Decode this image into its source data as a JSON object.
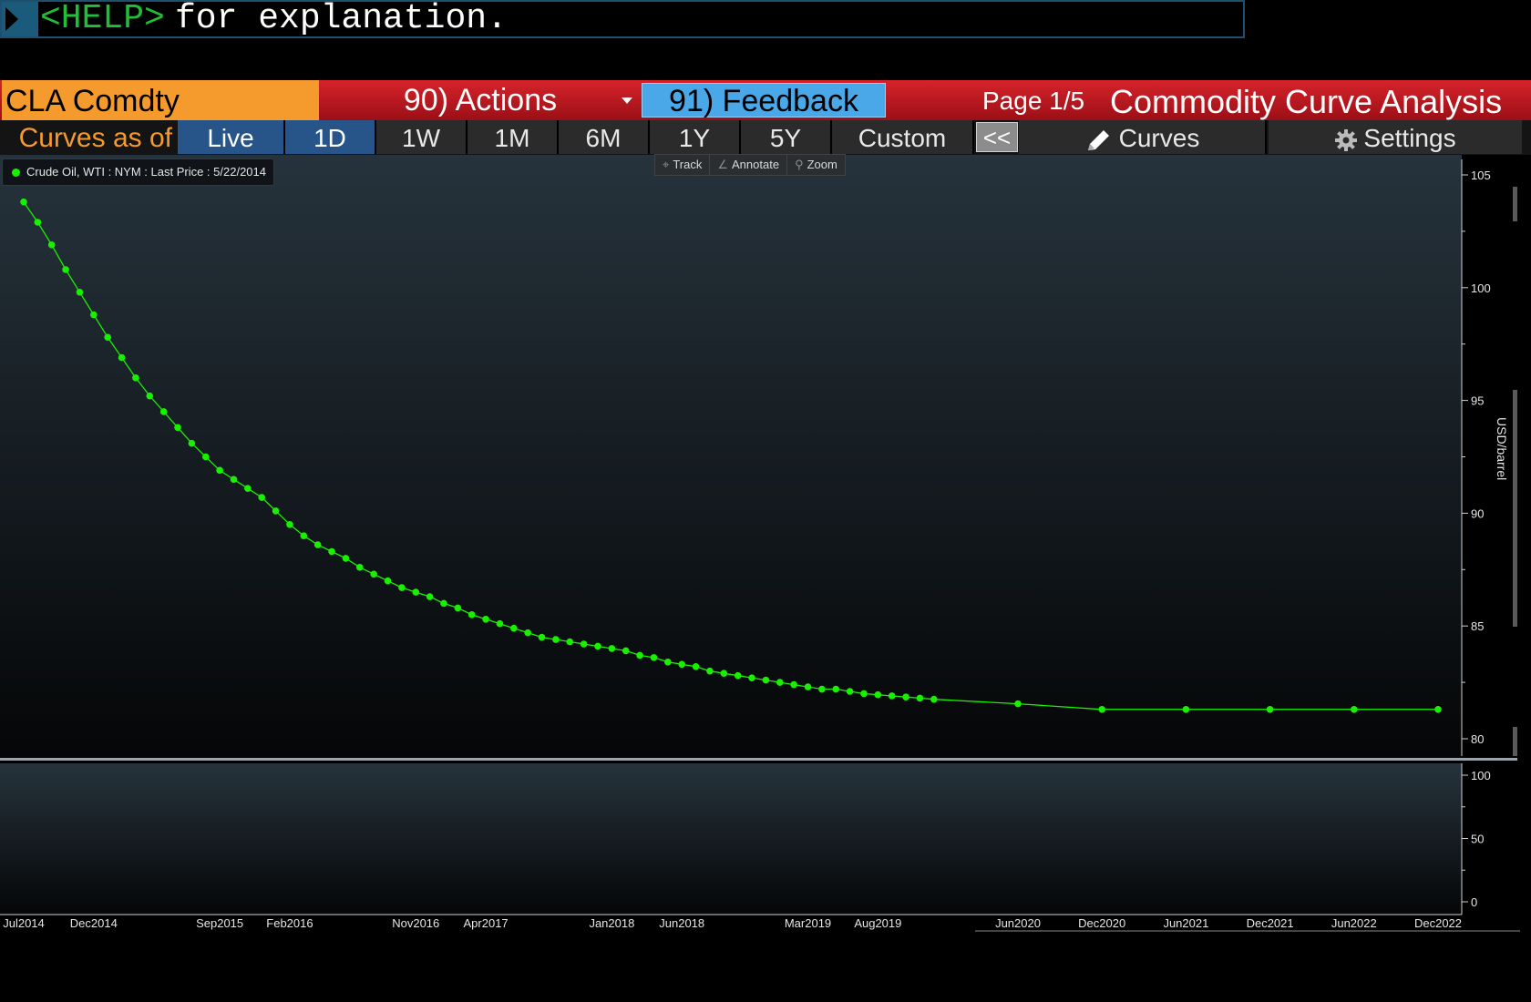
{
  "command_line": {
    "help_tag": "<HELP>",
    "text": " for explanation."
  },
  "titlebar": {
    "ticker": "CLA Comdty",
    "actions_label": "90) Actions",
    "feedback_label": "91) Feedback",
    "page": "Page 1/5",
    "title": "Commodity Curve Analysis"
  },
  "toolbar": {
    "as_of_label": "Curves as of",
    "buttons": [
      "Live",
      "1D",
      "1W",
      "1M",
      "6M",
      "1Y",
      "5Y",
      "Custom"
    ],
    "selected": [
      "Live",
      "1D"
    ],
    "collapse_label": "<<",
    "curves_label": "Curves",
    "settings_label": "Settings"
  },
  "chart_tools": {
    "track": "Track",
    "annotate": "Annotate",
    "zoom": "Zoom"
  },
  "colors": {
    "series": "#19f000",
    "ticker_bg": "#f59a2c",
    "title_red": "#c8141c",
    "selected_blue": "#27558a",
    "feedback_blue": "#4aa7e8"
  },
  "chart_data": {
    "type": "line",
    "legend": "Crude Oil, WTI : NYM : Last Price : 5/22/2014",
    "ylabel": "USD/barrel",
    "ylim": [
      80,
      105
    ],
    "yticks": [
      80,
      85,
      90,
      95,
      100,
      105
    ],
    "x_tick_labels": [
      "Jul2014",
      "Dec2014",
      "Sep2015",
      "Feb2016",
      "Nov2016",
      "Apr2017",
      "Jan2018",
      "Jun2018",
      "Mar2019",
      "Aug2019",
      "Jun2020",
      "Dec2020",
      "Jun2021",
      "Dec2021",
      "Jun2022",
      "Dec2022"
    ],
    "x_tick_positions": [
      0,
      5,
      14,
      19,
      28,
      33,
      42,
      47,
      56,
      61,
      71,
      77,
      83,
      89,
      95,
      101
    ],
    "x_month_range": [
      0,
      101
    ],
    "series": [
      {
        "x": [
          0,
          1,
          2,
          3,
          4,
          5,
          6,
          7,
          8,
          9,
          10,
          11,
          12,
          13,
          14,
          15,
          16,
          17,
          18,
          19,
          20,
          21,
          22,
          23,
          24,
          25,
          26,
          27,
          28,
          29,
          30,
          31,
          32,
          33,
          34,
          35,
          36,
          37,
          38,
          39,
          40,
          41,
          42,
          43,
          44,
          45,
          46,
          47,
          48,
          49,
          50,
          51,
          52,
          53,
          54,
          55,
          56,
          57,
          58,
          59,
          60,
          61,
          62,
          63,
          64,
          65,
          71,
          77,
          83,
          89,
          95,
          101
        ],
        "values": [
          103.8,
          102.9,
          101.9,
          100.8,
          99.8,
          98.8,
          97.8,
          96.9,
          96.0,
          95.2,
          94.5,
          93.8,
          93.1,
          92.5,
          91.9,
          91.5,
          91.1,
          90.7,
          90.1,
          89.5,
          89.0,
          88.6,
          88.3,
          88.0,
          87.6,
          87.3,
          87.0,
          86.7,
          86.5,
          86.3,
          86.0,
          85.8,
          85.5,
          85.3,
          85.1,
          84.9,
          84.7,
          84.5,
          84.4,
          84.3,
          84.2,
          84.1,
          84.0,
          83.9,
          83.7,
          83.6,
          83.4,
          83.3,
          83.2,
          83.0,
          82.9,
          82.8,
          82.7,
          82.6,
          82.5,
          82.4,
          82.3,
          82.2,
          82.2,
          82.1,
          82.0,
          81.95,
          81.9,
          81.85,
          81.8,
          81.75,
          81.55,
          81.3,
          81.3,
          81.3,
          81.3,
          81.3
        ]
      }
    ],
    "sub_panel": {
      "ylim": [
        0,
        100
      ],
      "yticks": [
        0,
        50,
        100
      ]
    }
  }
}
